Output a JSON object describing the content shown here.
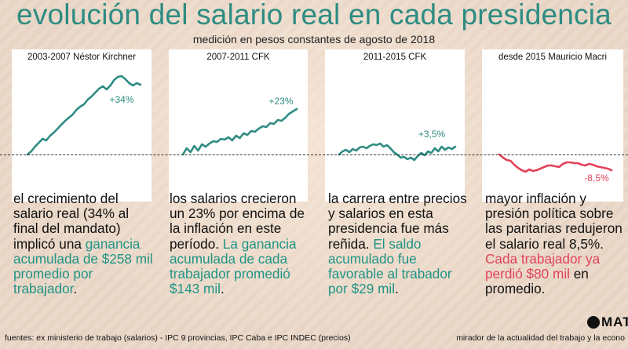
{
  "title": "evolución del salario real en cada presidencia",
  "subtitle": "medición en pesos constantes de agosto de 2018",
  "colors": {
    "teal": "#2e8c82",
    "red": "#e2435a",
    "baseline": "#333333"
  },
  "chart_data": [
    {
      "type": "line",
      "title": "2003-2007 Néstor Kirchner",
      "series": [
        {
          "color": "#2e8c82",
          "values": [
            0,
            4,
            10,
            15,
            20,
            18,
            24,
            28,
            33,
            38,
            43,
            47,
            51,
            57,
            61,
            64,
            70,
            74,
            79,
            84,
            87,
            83,
            88,
            95,
            99,
            100,
            96,
            91,
            88,
            91,
            89
          ]
        }
      ],
      "ylim": [
        -40,
        110
      ],
      "annotation": "+34%"
    },
    {
      "type": "line",
      "title": "2007-2011 CFK",
      "series": [
        {
          "color": "#2e8c82",
          "values": [
            0,
            8,
            3,
            11,
            5,
            13,
            10,
            14,
            17,
            16,
            20,
            19,
            22,
            18,
            24,
            21,
            27,
            25,
            30,
            29,
            33,
            36,
            35,
            40,
            39,
            44,
            43,
            47,
            52,
            55,
            58
          ]
        }
      ],
      "ylim": [
        -40,
        110
      ],
      "annotation": "+23%"
    },
    {
      "type": "line",
      "title": "2011-2015 CFK",
      "series": [
        {
          "color": "#2e8c82",
          "values": [
            0,
            4,
            6,
            3,
            7,
            5,
            9,
            10,
            8,
            11,
            13,
            12,
            14,
            10,
            12,
            8,
            3,
            0,
            -4,
            -3,
            -6,
            -4,
            -7,
            -2,
            2,
            -1,
            4,
            2,
            8,
            4,
            10,
            6,
            9,
            7,
            10
          ]
        }
      ],
      "ylim": [
        -40,
        110
      ],
      "annotation": "+3,5%"
    },
    {
      "type": "line",
      "title": "desde 2015 Mauricio Macri",
      "series": [
        {
          "color": "#e2435a",
          "values": [
            0,
            -4,
            -7,
            -8,
            -13,
            -17,
            -20,
            -22,
            -19,
            -21,
            -20,
            -18,
            -16,
            -14,
            -14,
            -15,
            -16,
            -12,
            -10,
            -10,
            -11,
            -11,
            -13,
            -14,
            -12,
            -13,
            -15,
            -16,
            -17,
            -18,
            -20
          ]
        }
      ],
      "ylim": [
        -40,
        110
      ],
      "annotation": "-8,5%"
    }
  ],
  "texts": [
    {
      "plain": "el crecimiento del salario real (34% al final del mandato) implicó una ",
      "accent": "ganancia acumulada de $258 mil promedio por trabajador",
      "tail": "."
    },
    {
      "plain": "los salarios crecieron un 23% por encima de la inflación en este período. ",
      "accent": "La ganancia acumulada de cada trabajador promedió $143 mil",
      "tail": "."
    },
    {
      "plain": "la carrera entre precios y salarios en esta presidencia fue más reñida. ",
      "accent": "El saldo acumulado fue favorable al trabador por $29 mil",
      "tail": "."
    },
    {
      "plain": "mayor inflación y presión política sobre las paritarias redujeron el salario real 8,5%. ",
      "accent": "Cada trabajador ya perdió $80 mil",
      "tail": " en promedio."
    }
  ],
  "footer": {
    "sources": "fuentes: ex ministerio de trabajo (salarios) - IPC 9 provincias, IPC Caba e IPC INDEC (precios)",
    "brand": "mirador de la actualidad del trabajo y la econo",
    "logo": "MAT"
  }
}
